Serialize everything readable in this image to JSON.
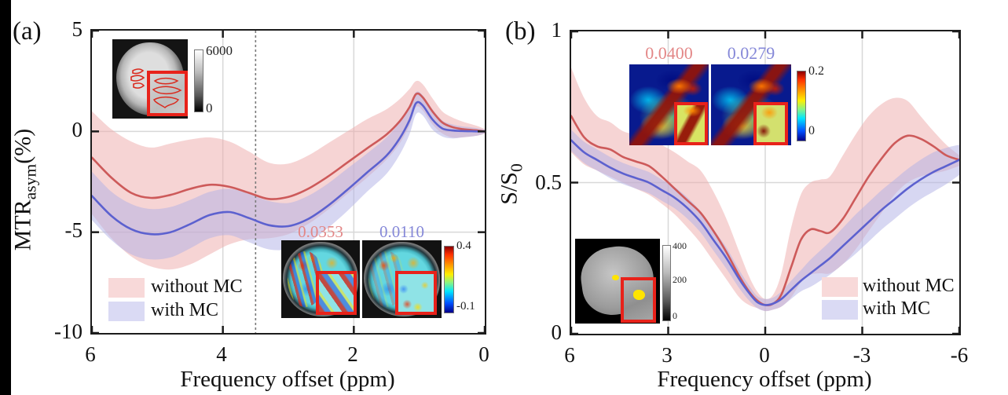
{
  "figure": {
    "panel_a": {
      "tag": "(a)",
      "ylabel_main": "MTR",
      "ylabel_sub": "asym",
      "ylabel_unit": "(%)",
      "xlabel": "Frequency offset (ppm)",
      "yticks": [
        "5",
        "0",
        "-5",
        "-10"
      ],
      "xticks": [
        "6",
        "4",
        "2",
        "0"
      ],
      "legend": {
        "without": "without MC",
        "with": "with MC"
      },
      "inset_roi": {
        "colorbar_max": "6000",
        "colorbar_min": "0"
      },
      "inset_maps": {
        "value_without": "0.0353",
        "value_with": "0.0110",
        "colorbar_max": "0.4",
        "colorbar_min": "-0.1"
      }
    },
    "panel_b": {
      "tag": "(b)",
      "ylabel_main": "S/S",
      "ylabel_sub": "0",
      "xlabel": "Frequency offset (ppm)",
      "yticks": [
        "1",
        "0.5",
        "0"
      ],
      "xticks": [
        "6",
        "3",
        "0",
        "-3",
        "-6"
      ],
      "legend": {
        "without": "without MC",
        "with": "with MC"
      },
      "inset_maps": {
        "value_without": "0.0400",
        "value_with": "0.0279",
        "colorbar_max": "0.2",
        "colorbar_min": "0"
      },
      "inset_roi": {
        "colorbar_max": "400",
        "colorbar_mid": "200",
        "colorbar_min": "0"
      }
    }
  },
  "colors": {
    "red_line": "#cd5a5a",
    "red_band": "#eeaaaa",
    "blue_line": "#5c61cf",
    "blue_band": "#b0b0e6",
    "grid": "#d8d8d8",
    "dashed": "#7a7a7a",
    "axis": "#1c1c1c",
    "value_red": "#e38787",
    "value_blue": "#8588d8"
  },
  "chart_data": [
    {
      "type": "line",
      "title": "",
      "xlabel": "Frequency offset (ppm)",
      "ylabel": "MTR_asym (%)",
      "xlim": [
        6,
        0
      ],
      "ylim": [
        -10,
        5
      ],
      "grid_x": [
        4,
        2
      ],
      "grid_y": [
        0,
        -5
      ],
      "tick_x": [
        6,
        4,
        2,
        0
      ],
      "tick_y": [
        5,
        0,
        -5,
        -10
      ],
      "dashed_vline": 3.5,
      "legend_position": "bottom-left",
      "x": [
        6,
        5.7,
        5.4,
        5.1,
        4.8,
        4.5,
        4.2,
        3.9,
        3.6,
        3.3,
        3.0,
        2.7,
        2.4,
        2.1,
        1.8,
        1.5,
        1.3,
        1.15,
        1.05,
        0.95,
        0.8,
        0.65,
        0.5,
        0.35,
        0.2,
        0.1,
        0
      ],
      "series": [
        {
          "name": "without MC",
          "color": "#cd5a5a",
          "band_color": "#eeaaaa",
          "values": [
            -1.3,
            -2.3,
            -3.05,
            -3.3,
            -3.15,
            -2.85,
            -2.65,
            -2.75,
            -3.05,
            -3.35,
            -3.25,
            -2.85,
            -2.25,
            -1.55,
            -0.85,
            -0.15,
            0.5,
            1.2,
            1.85,
            1.7,
            1.0,
            0.45,
            0.22,
            0.12,
            0.07,
            0.04,
            0
          ],
          "band_upper": [
            1.0,
            0.1,
            -0.5,
            -0.8,
            -0.6,
            -0.4,
            -0.3,
            -0.5,
            -1.0,
            -1.55,
            -1.6,
            -1.2,
            -0.6,
            0.0,
            0.6,
            1.1,
            1.6,
            2.1,
            2.5,
            2.35,
            1.65,
            1.0,
            0.7,
            0.5,
            0.35,
            0.25,
            0.12
          ],
          "band_lower": [
            -4.1,
            -5.3,
            -6.2,
            -6.7,
            -6.85,
            -6.6,
            -6.1,
            -5.6,
            -5.35,
            -5.3,
            -5.1,
            -4.6,
            -3.9,
            -3.1,
            -2.3,
            -1.4,
            -0.6,
            0.3,
            1.2,
            1.05,
            0.35,
            -0.1,
            -0.3,
            -0.3,
            -0.25,
            -0.2,
            -0.12
          ]
        },
        {
          "name": "with MC",
          "color": "#5c61cf",
          "band_color": "#b0b0e6",
          "values": [
            -3.2,
            -4.2,
            -4.85,
            -5.1,
            -5.0,
            -4.6,
            -4.15,
            -4.0,
            -4.3,
            -4.65,
            -4.7,
            -4.35,
            -3.7,
            -2.9,
            -2.05,
            -1.2,
            -0.35,
            0.55,
            1.4,
            1.3,
            0.6,
            0.15,
            0.05,
            0.02,
            0.01,
            0,
            0
          ],
          "band_upper": [
            -2.0,
            -3.0,
            -3.6,
            -3.85,
            -3.75,
            -3.4,
            -3.0,
            -2.85,
            -3.1,
            -3.45,
            -3.55,
            -3.2,
            -2.6,
            -1.85,
            -1.1,
            -0.3,
            0.45,
            1.25,
            1.95,
            1.8,
            1.1,
            0.55,
            0.35,
            0.25,
            0.2,
            0.15,
            0.1
          ],
          "band_lower": [
            -4.4,
            -5.4,
            -6.1,
            -6.35,
            -6.25,
            -5.8,
            -5.3,
            -5.15,
            -5.5,
            -5.85,
            -5.85,
            -5.5,
            -4.8,
            -3.95,
            -3.0,
            -2.1,
            -1.15,
            -0.15,
            0.85,
            0.8,
            0.1,
            -0.25,
            -0.35,
            -0.3,
            -0.25,
            -0.2,
            -0.1
          ]
        }
      ]
    },
    {
      "type": "line",
      "title": "",
      "xlabel": "Frequency offset (ppm)",
      "ylabel": "S/S_0",
      "xlim": [
        6,
        -6
      ],
      "ylim": [
        0,
        1
      ],
      "grid_x": [
        3,
        0,
        -3
      ],
      "grid_y": [
        0.5
      ],
      "tick_x": [
        6,
        3,
        0,
        -3,
        -6
      ],
      "tick_y": [
        1,
        0.5,
        0
      ],
      "dashed_vline": null,
      "legend_position": "bottom-right",
      "x": [
        6,
        5.6,
        5.2,
        4.8,
        4.4,
        4.0,
        3.6,
        3.2,
        2.8,
        2.4,
        2.0,
        1.6,
        1.2,
        0.8,
        0.5,
        0.25,
        0,
        -0.25,
        -0.5,
        -0.8,
        -1.1,
        -1.4,
        -1.7,
        -2.0,
        -2.4,
        -2.8,
        -3.2,
        -3.6,
        -4.0,
        -4.4,
        -4.8,
        -5.2,
        -5.6,
        -6
      ],
      "series": [
        {
          "name": "without MC",
          "color": "#cd5a5a",
          "band_color": "#eeaaaa",
          "values": [
            0.72,
            0.65,
            0.62,
            0.61,
            0.585,
            0.57,
            0.555,
            0.52,
            0.48,
            0.44,
            0.4,
            0.34,
            0.27,
            0.19,
            0.14,
            0.11,
            0.095,
            0.1,
            0.13,
            0.22,
            0.31,
            0.345,
            0.34,
            0.335,
            0.38,
            0.45,
            0.52,
            0.58,
            0.63,
            0.655,
            0.645,
            0.62,
            0.59,
            0.575
          ],
          "band_upper": [
            0.88,
            0.78,
            0.72,
            0.7,
            0.67,
            0.66,
            0.655,
            0.625,
            0.6,
            0.57,
            0.54,
            0.47,
            0.38,
            0.27,
            0.19,
            0.14,
            0.115,
            0.13,
            0.2,
            0.35,
            0.46,
            0.5,
            0.51,
            0.52,
            0.59,
            0.66,
            0.72,
            0.76,
            0.78,
            0.77,
            0.72,
            0.67,
            0.625,
            0.59
          ],
          "band_lower": [
            0.6,
            0.56,
            0.54,
            0.52,
            0.5,
            0.48,
            0.46,
            0.43,
            0.395,
            0.35,
            0.3,
            0.24,
            0.18,
            0.12,
            0.095,
            0.085,
            0.075,
            0.08,
            0.09,
            0.12,
            0.17,
            0.195,
            0.2,
            0.2,
            0.23,
            0.28,
            0.34,
            0.4,
            0.46,
            0.5,
            0.52,
            0.53,
            0.54,
            0.555
          ]
        },
        {
          "name": "with MC",
          "color": "#5c61cf",
          "band_color": "#b0b0e6",
          "values": [
            0.64,
            0.6,
            0.575,
            0.55,
            0.53,
            0.515,
            0.5,
            0.475,
            0.45,
            0.415,
            0.37,
            0.31,
            0.25,
            0.18,
            0.135,
            0.105,
            0.095,
            0.1,
            0.115,
            0.145,
            0.175,
            0.2,
            0.225,
            0.25,
            0.29,
            0.33,
            0.37,
            0.41,
            0.445,
            0.48,
            0.51,
            0.535,
            0.555,
            0.575
          ],
          "band_upper": [
            0.675,
            0.635,
            0.61,
            0.585,
            0.565,
            0.55,
            0.535,
            0.51,
            0.485,
            0.45,
            0.405,
            0.345,
            0.285,
            0.21,
            0.16,
            0.125,
            0.115,
            0.12,
            0.14,
            0.175,
            0.21,
            0.245,
            0.275,
            0.305,
            0.35,
            0.395,
            0.435,
            0.475,
            0.51,
            0.545,
            0.575,
            0.6,
            0.615,
            0.625
          ],
          "band_lower": [
            0.605,
            0.565,
            0.54,
            0.515,
            0.495,
            0.48,
            0.465,
            0.44,
            0.415,
            0.38,
            0.335,
            0.275,
            0.215,
            0.15,
            0.11,
            0.085,
            0.075,
            0.08,
            0.09,
            0.115,
            0.14,
            0.155,
            0.175,
            0.195,
            0.23,
            0.265,
            0.305,
            0.345,
            0.38,
            0.415,
            0.445,
            0.47,
            0.495,
            0.525
          ]
        }
      ]
    }
  ]
}
